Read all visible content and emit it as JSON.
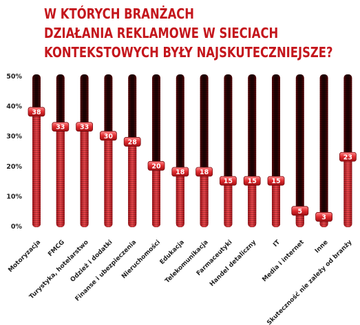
{
  "title_lines": [
    "W KTÓRYCH BRANŻACH",
    "DZIAŁANIA REKLAMOWE W SIECIACH",
    "KONTEKSTOWYCH BYŁY NAJSKUTECZNIEJSZE?"
  ],
  "colors": {
    "title": "#c4161c",
    "bar_dark": "#2a0406",
    "bar_mid": "#8e0f14",
    "bar_light": "#e23a3e",
    "knob": "#e02a2e",
    "axis_text": "#222222"
  },
  "chart_data": {
    "type": "bar",
    "categories": [
      "Motoryzacja",
      "FMCG",
      "Turystyka, hotelarstwo",
      "Odzież i dodatki",
      "Finanse i ubezpieczenia",
      "Nieruchomości",
      "Edukacja",
      "Telekomunikacja",
      "Farmaceutyki",
      "Handel detaliczny",
      "IT",
      "Media i internet",
      "Inne",
      "Skuteczność nie zależy od branży"
    ],
    "values": [
      38,
      33,
      33,
      30,
      28,
      20,
      18,
      18,
      15,
      15,
      15,
      5,
      3,
      23
    ],
    "value_labels": [
      "38",
      "33",
      "33",
      "30",
      "28",
      "20",
      "18",
      "18",
      "15",
      "15",
      "15",
      "5",
      "3",
      "23"
    ],
    "y_ticks": [
      "0%",
      "10%",
      "20%",
      "30%",
      "40%",
      "50%"
    ],
    "ylim": [
      0,
      50
    ],
    "grid": false
  }
}
